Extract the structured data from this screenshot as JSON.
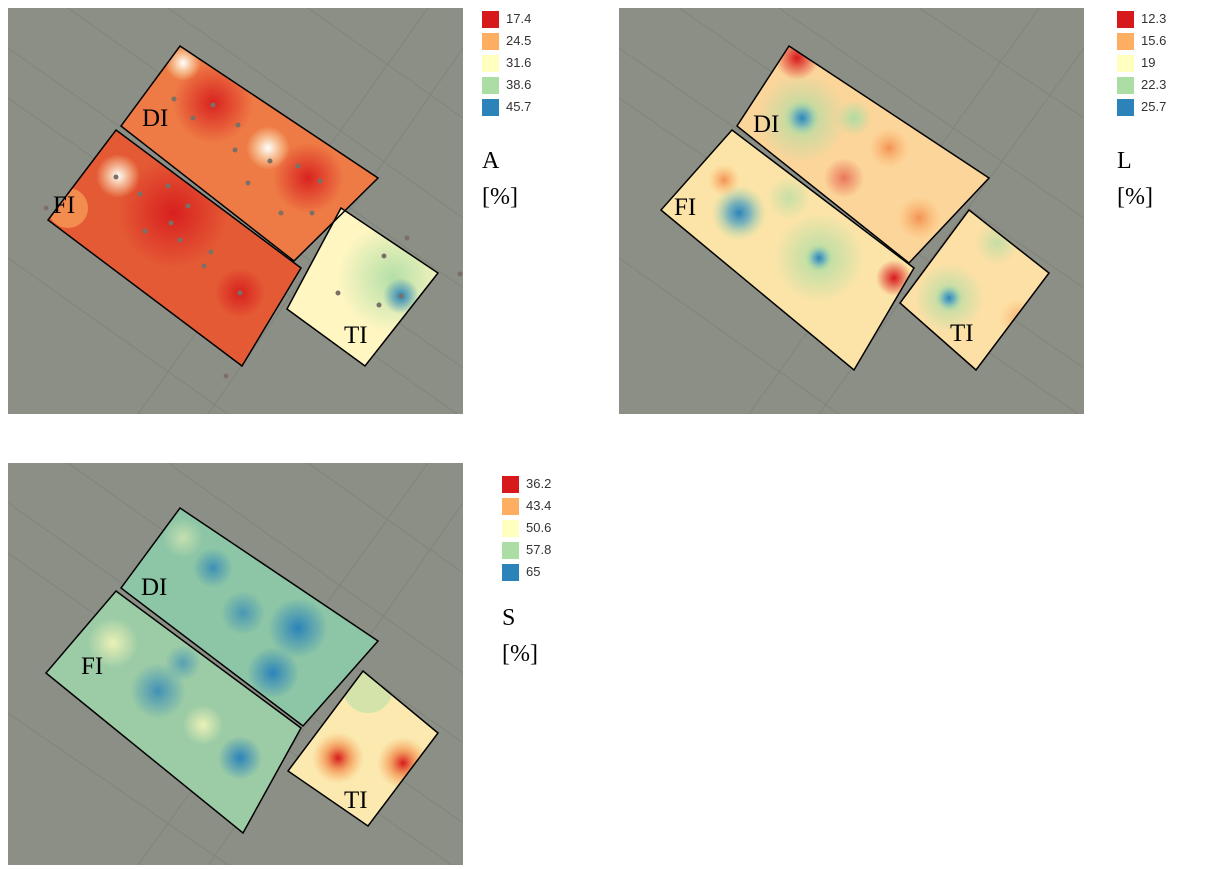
{
  "panels": [
    {
      "variable": "A",
      "unit": "[%]",
      "legend": [
        {
          "value": "17.4",
          "color": "#d7191c"
        },
        {
          "value": "24.5",
          "color": "#fdae61"
        },
        {
          "value": "31.6",
          "color": "#ffffbf"
        },
        {
          "value": "38.6",
          "color": "#abdda4"
        },
        {
          "value": "45.7",
          "color": "#2b83ba"
        }
      ],
      "zones": {
        "di": "DI",
        "fi": "FI",
        "ti": "TI"
      }
    },
    {
      "variable": "L",
      "unit": "[%]",
      "legend": [
        {
          "value": "12.3",
          "color": "#d7191c"
        },
        {
          "value": "15.6",
          "color": "#fdae61"
        },
        {
          "value": "19",
          "color": "#ffffbf"
        },
        {
          "value": "22.3",
          "color": "#abdda4"
        },
        {
          "value": "25.7",
          "color": "#2b83ba"
        }
      ],
      "zones": {
        "di": "DI",
        "fi": "FI",
        "ti": "TI"
      }
    },
    {
      "variable": "S",
      "unit": "[%]",
      "legend": [
        {
          "value": "36.2",
          "color": "#d7191c"
        },
        {
          "value": "43.4",
          "color": "#fdae61"
        },
        {
          "value": "50.6",
          "color": "#ffffbf"
        },
        {
          "value": "57.8",
          "color": "#abdda4"
        },
        {
          "value": "65",
          "color": "#2b83ba"
        }
      ],
      "zones": {
        "di": "DI",
        "fi": "FI",
        "ti": "TI"
      }
    }
  ]
}
